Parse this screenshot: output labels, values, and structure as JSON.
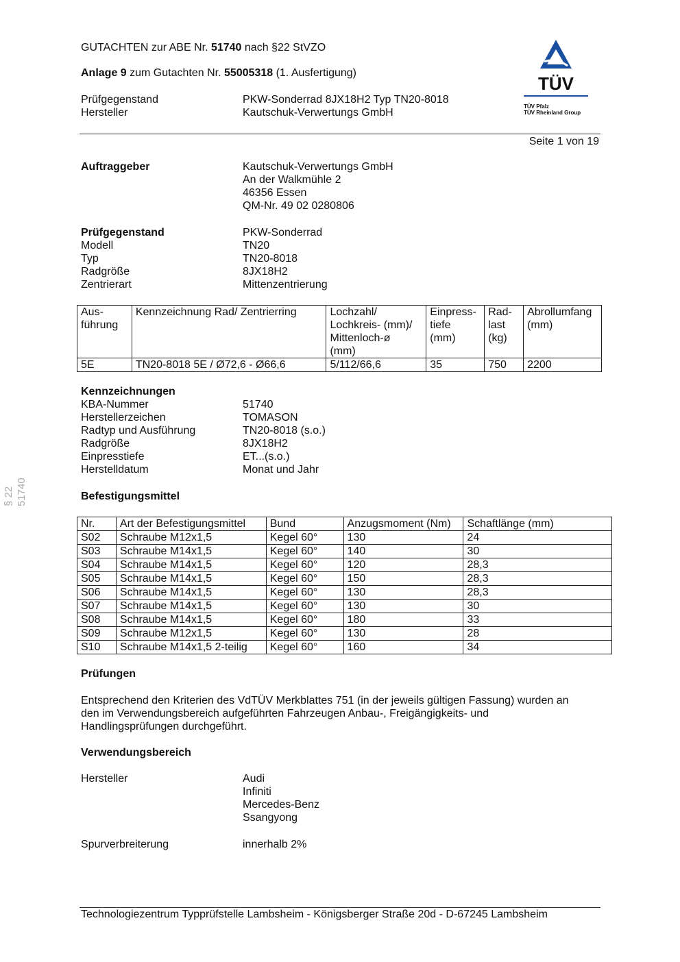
{
  "header": {
    "line1_pre": "GUTACHTEN zur ABE Nr. ",
    "line1_bold": "51740",
    "line1_post": " nach §22 StVZO",
    "line2_bold": "Anlage 9",
    "line2_mid": " zum Gutachten Nr. ",
    "line2_bold2": "55005318",
    "line2_post": " (1. Ausfertigung)",
    "rows": [
      {
        "label": "Prüfgegenstand",
        "value": "PKW-Sonderrad 8JX18H2 Typ TN20-8018"
      },
      {
        "label": "Hersteller",
        "value": "Kautschuk-Verwertungs GmbH"
      }
    ],
    "page": "Seite 1 von 19"
  },
  "logo": {
    "text": "TÜV",
    "sub1": "TÜV Pfalz",
    "sub2": "TÜV Rheinland Group",
    "color": "#1a4fa0"
  },
  "side_text": "§ 22  51740",
  "auftraggeber": {
    "label": "Auftraggeber",
    "lines": [
      "Kautschuk-Verwertungs GmbH",
      "An der Walkmühle 2",
      "46356 Essen",
      "QM-Nr. 49 02 0280806"
    ]
  },
  "pruefgegenstand": {
    "label": "Prüfgegenstand",
    "value": "PKW-Sonderrad",
    "rows": [
      {
        "label": "Modell",
        "value": "TN20"
      },
      {
        "label": "Typ",
        "value": "TN20-8018"
      },
      {
        "label": "Radgröße",
        "value": "8JX18H2"
      },
      {
        "label": "Zentrierart",
        "value": "Mittenzentrierung"
      }
    ]
  },
  "wheel_table": {
    "headers": [
      [
        "Aus-",
        "führung"
      ],
      [
        "Kennzeichnung Rad/ Zentrierring"
      ],
      [
        "Lochzahl/",
        "Lochkreis- (mm)/",
        "Mittenloch-ø",
        "(mm)"
      ],
      [
        "Einpress-",
        "tiefe",
        "(mm)"
      ],
      [
        "Rad-",
        "last",
        "(kg)"
      ],
      [
        "Abrollumfang",
        "(mm)"
      ]
    ],
    "row": [
      "5E",
      "TN20-8018 5E / Ø72,6 - Ø66,6",
      "5/112/66,6",
      "35",
      "750",
      "2200"
    ]
  },
  "kennzeichnungen": {
    "title": "Kennzeichnungen",
    "rows": [
      {
        "label": "KBA-Nummer",
        "value": "51740"
      },
      {
        "label": "Herstellerzeichen",
        "value": "TOMASON"
      },
      {
        "label": "Radtyp und Ausführung",
        "value": "TN20-8018 (s.o.)"
      },
      {
        "label": "Radgröße",
        "value": "8JX18H2"
      },
      {
        "label": "Einpresstiefe",
        "value": "ET...(s.o.)"
      },
      {
        "label": "Herstelldatum",
        "value": "Monat und Jahr"
      }
    ]
  },
  "befestigung": {
    "title": "Befestigungsmittel",
    "headers": [
      "Nr.",
      "Art der Befestigungsmittel",
      "Bund",
      "Anzugsmoment (Nm)",
      "Schaftlänge (mm)"
    ],
    "rows": [
      [
        "S02",
        "Schraube M12x1,5",
        "Kegel 60°",
        "130",
        "24"
      ],
      [
        "S03",
        "Schraube M14x1,5",
        "Kegel 60°",
        "140",
        "30"
      ],
      [
        "S04",
        "Schraube M14x1,5",
        "Kegel 60°",
        "120",
        "28,3"
      ],
      [
        "S05",
        "Schraube M14x1,5",
        "Kegel 60°",
        "150",
        "28,3"
      ],
      [
        "S06",
        "Schraube M14x1,5",
        "Kegel 60°",
        "130",
        "28,3"
      ],
      [
        "S07",
        "Schraube M14x1,5",
        "Kegel 60°",
        "130",
        "30"
      ],
      [
        "S08",
        "Schraube M14x1,5",
        "Kegel 60°",
        "180",
        "33"
      ],
      [
        "S09",
        "Schraube M12x1,5",
        "Kegel 60°",
        "130",
        "28"
      ],
      [
        "S10",
        "Schraube M14x1,5  2-teilig",
        "Kegel 60°",
        "160",
        "34"
      ]
    ]
  },
  "pruefungen": {
    "title": "Prüfungen",
    "lines": [
      "Entsprechend den Kriterien des VdTÜV Merkblattes 751 (in der jeweils gültigen Fassung) wurden an",
      "den im Verwendungsbereich aufgeführten Fahrzeugen Anbau-, Freigängigkeits- und",
      "Handlingsprüfungen durchgeführt."
    ]
  },
  "verwendung": {
    "title": "Verwendungsbereich",
    "hersteller_label": "Hersteller",
    "hersteller": [
      "Audi",
      "Infiniti",
      "Mercedes-Benz",
      "Ssangyong"
    ],
    "spur_label": "Spurverbreiterung",
    "spur_value": "innerhalb 2%"
  },
  "footer": "Technologiezentrum Typprüfstelle Lambsheim - Königsberger Straße 20d - D-67245 Lambsheim"
}
